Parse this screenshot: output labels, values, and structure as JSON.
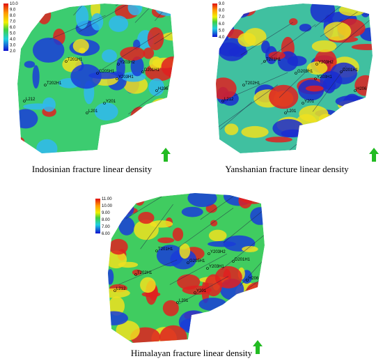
{
  "panels": [
    {
      "caption": "Indosinian fracture linear density",
      "colorbar": [
        "10.0",
        "9.0",
        "8.0",
        "7.0",
        "6.0",
        "5.0",
        "4.0",
        "3.0",
        "2.0"
      ],
      "wells": [
        "T201H1",
        "G205H1",
        "Y203H2",
        "D201H1",
        "Y203H1",
        "T202H1",
        "H206",
        "Y201",
        "L201",
        "L212"
      ]
    },
    {
      "caption": "Yanshanian fracture linear density",
      "colorbar": [
        "9.0",
        "8.0",
        "7.0",
        "6.0",
        "5.0",
        "4.0"
      ],
      "wells": [
        "T201H1",
        "G205H1",
        "Y203H2",
        "D201H1",
        "Y203H1",
        "T202H1",
        "H206",
        "Y201",
        "L201",
        "L212"
      ]
    },
    {
      "caption": "Himalayan fracture linear density",
      "colorbar": [
        "11.00",
        "10.00",
        "9.00",
        "8.00",
        "7.00",
        "6.00"
      ],
      "wells": [
        "T201H1",
        "G205H1",
        "Y203H2",
        "D201H1",
        "Y203H1",
        "T202H1",
        "H206",
        "Y201",
        "L201",
        "L212"
      ]
    }
  ]
}
